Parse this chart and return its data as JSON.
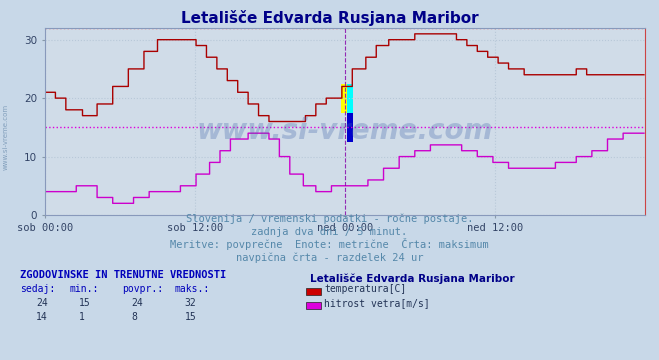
{
  "title": "Letališče Edvarda Rusjana Maribor",
  "title_color": "#000088",
  "bg_color": "#c8d8e8",
  "plot_bg_color": "#d0dce8",
  "grid_color": "#b8c8d8",
  "xlabel_ticks": [
    "sob 00:00",
    "sob 12:00",
    "ned 00:00",
    "ned 12:00"
  ],
  "ylabel_ticks": [
    0,
    10,
    20,
    30
  ],
  "ylim": [
    0,
    32
  ],
  "xlim": [
    0,
    576
  ],
  "temp_color": "#aa0000",
  "wind_color": "#cc00cc",
  "hline_temp_color": "#ff4444",
  "hline_wind_color": "#dd00dd",
  "vline_color": "#8800aa",
  "subtitle1": "Slovenija / vremenski podatki - ročne postaje.",
  "subtitle2": "zadnja dva dni / 5 minut.",
  "subtitle3": "Meritve: povprečne  Enote: metrične  Črta: maksimum",
  "subtitle4": "navpična črta - razdelek 24 ur",
  "subtitle_color": "#5588aa",
  "table_header": "ZGODOVINSKE IN TRENUTNE VREDNOSTI",
  "table_header_color": "#0000bb",
  "col_headers": [
    "sedaj:",
    "min.:",
    "povpr.:",
    "maks.:"
  ],
  "col_header_color": "#0000bb",
  "row1_vals": [
    "24",
    "15",
    "24",
    "32"
  ],
  "row2_vals": [
    "14",
    "1",
    "8",
    "15"
  ],
  "legend_title": "Letališče Edvarda Rusjana Maribor",
  "legend_title_color": "#000088",
  "legend_items": [
    "temperatura[C]",
    "hitrost vetra[m/s]"
  ],
  "legend_colors": [
    "#cc0000",
    "#dd00dd"
  ],
  "text_color": "#223355",
  "watermark_color": "#4466aa",
  "max_temp": 32,
  "max_wind": 15,
  "n_points": 576,
  "tick_label_color": "#334466"
}
